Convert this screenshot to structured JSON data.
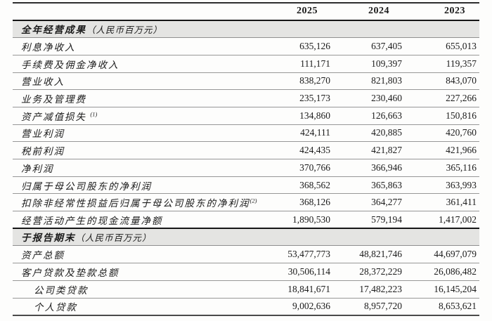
{
  "colors": {
    "section_band": "#e4e4e2",
    "row_line": "#979797",
    "heavy_line": "#151515",
    "text": "#1b1b1b"
  },
  "table": {
    "years": [
      "2025",
      "2024",
      "2023"
    ],
    "sections": [
      {
        "title": "全年经营成果",
        "unit": "（人民币百万元）",
        "rows": [
          {
            "label": "利息净收入",
            "values": [
              "635,126",
              "637,405",
              "655,013"
            ]
          },
          {
            "label": "手续费及佣金净收入",
            "values": [
              "111,171",
              "109,397",
              "119,357"
            ]
          },
          {
            "label": "营业收入",
            "values": [
              "838,270",
              "821,803",
              "843,070"
            ]
          },
          {
            "label": "业务及管理费",
            "values": [
              "235,173",
              "230,460",
              "227,266"
            ]
          },
          {
            "label": "资产减值损失",
            "sup": "(1)",
            "values": [
              "134,860",
              "126,663",
              "150,816"
            ]
          },
          {
            "label": "营业利润",
            "values": [
              "424,111",
              "420,885",
              "420,760"
            ]
          },
          {
            "label": "税前利润",
            "values": [
              "424,435",
              "421,827",
              "421,966"
            ]
          },
          {
            "label": "净利润",
            "values": [
              "370,766",
              "366,946",
              "365,116"
            ]
          },
          {
            "label": "归属于母公司股东的净利润",
            "values": [
              "368,562",
              "365,863",
              "363,993"
            ]
          },
          {
            "label": "扣除非经常性损益后归属于母公司股东的净利润",
            "sup": "(2)",
            "values": [
              "368,126",
              "364,277",
              "361,411"
            ]
          },
          {
            "label": "经营活动产生的现金流量净额",
            "values": [
              "1,890,530",
              "579,194",
              "1,417,002"
            ]
          }
        ]
      },
      {
        "title": "于报告期末",
        "unit": "（人民币百万元）",
        "rows": [
          {
            "label": "资产总额",
            "values": [
              "53,477,773",
              "48,821,746",
              "44,697,079"
            ]
          },
          {
            "label": "客户贷款及垫款总额",
            "values": [
              "30,506,114",
              "28,372,229",
              "26,086,482"
            ]
          },
          {
            "label": "公司类贷款",
            "indent": true,
            "values": [
              "18,841,671",
              "17,482,223",
              "16,145,204"
            ]
          },
          {
            "label": "个人贷款",
            "indent": true,
            "values": [
              "9,002,636",
              "8,957,720",
              "8,653,621"
            ]
          }
        ]
      }
    ]
  }
}
